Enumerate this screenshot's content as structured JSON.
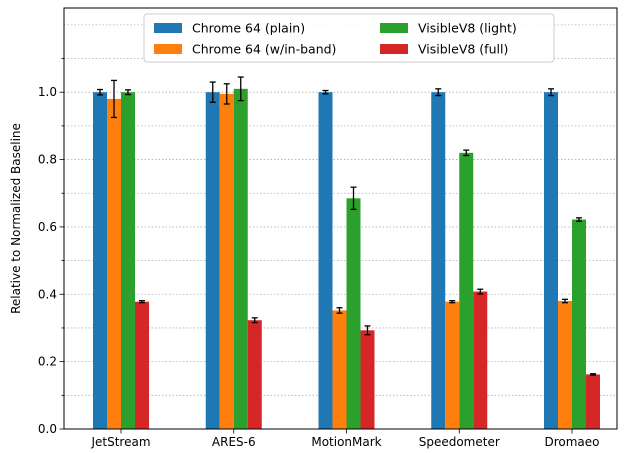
{
  "chart_data": {
    "type": "bar",
    "ylabel": "Relative to Normalized Baseline",
    "categories": [
      "JetStream",
      "ARES-6",
      "MotionMark",
      "Speedometer",
      "Dromaeo"
    ],
    "series": [
      {
        "name": "Chrome 64 (plain)",
        "color": "#1f77b4",
        "values": [
          1.0,
          1.0,
          1.0,
          1.0,
          1.0
        ],
        "errors": [
          0.008,
          0.03,
          0.005,
          0.01,
          0.01
        ]
      },
      {
        "name": "Chrome 64 (w/in-band)",
        "color": "#ff7f0e",
        "values": [
          0.98,
          0.995,
          0.352,
          0.378,
          0.38
        ],
        "errors": [
          0.055,
          0.03,
          0.008,
          0.003,
          0.005
        ]
      },
      {
        "name": "VisibleV8 (light)",
        "color": "#2ca02c",
        "values": [
          1.0,
          1.01,
          0.685,
          0.82,
          0.622
        ],
        "errors": [
          0.007,
          0.035,
          0.033,
          0.008,
          0.005
        ]
      },
      {
        "name": "VisibleV8 (full)",
        "color": "#d62728",
        "values": [
          0.378,
          0.323,
          0.293,
          0.408,
          0.162
        ],
        "errors": [
          0.003,
          0.007,
          0.013,
          0.007,
          0.002
        ]
      }
    ],
    "ylim": [
      0,
      1.25
    ],
    "yticks": [
      "0.0",
      "0.2",
      "0.4",
      "0.6",
      "0.8",
      "1.0"
    ],
    "ytick_values": [
      0,
      0.2,
      0.4,
      0.6,
      0.8,
      1.0
    ],
    "grid": "y-dotted",
    "legend": {
      "position": "top-center",
      "columns": 2
    }
  }
}
